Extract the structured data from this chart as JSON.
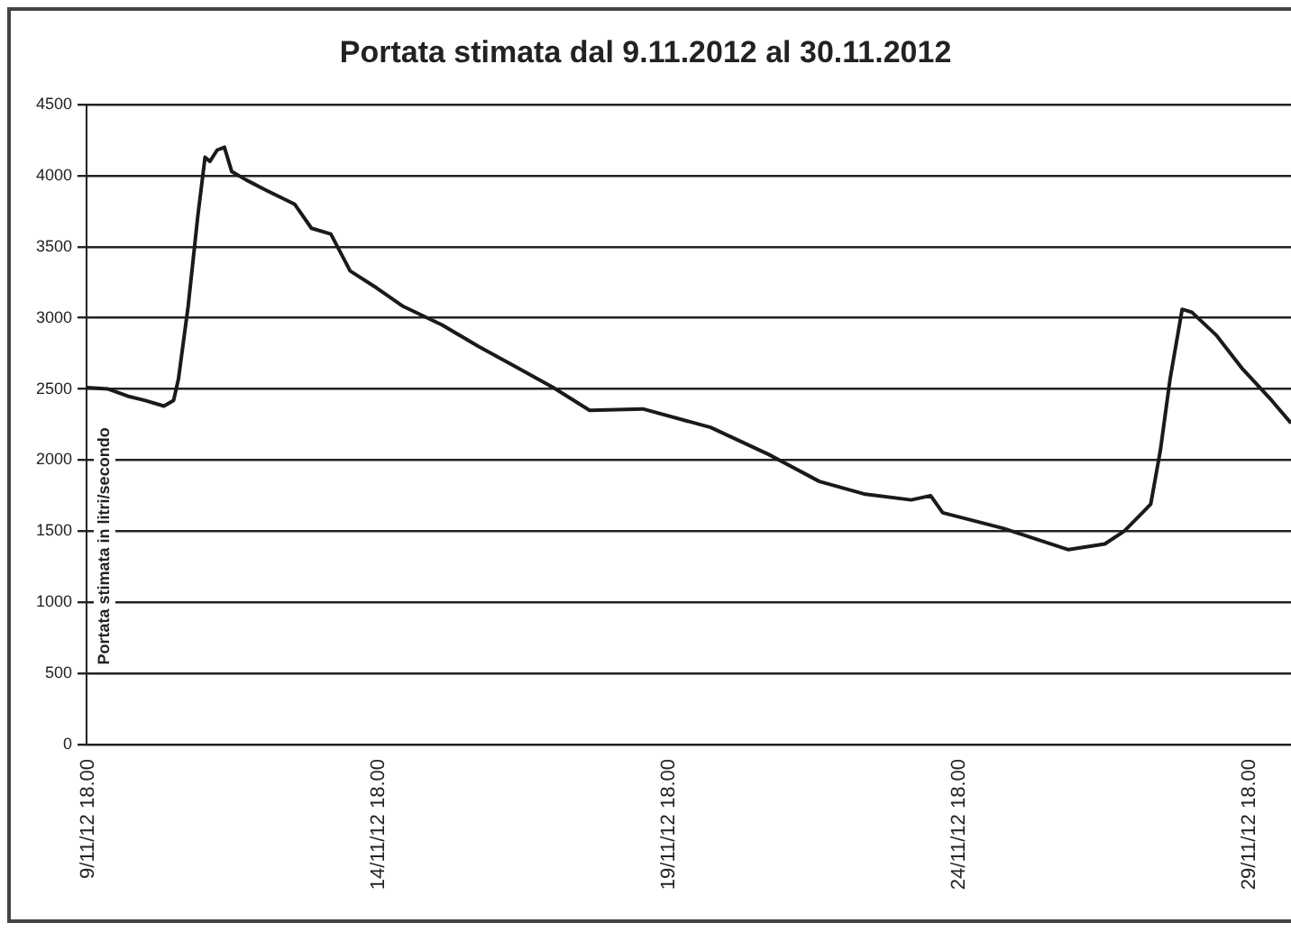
{
  "chart_data": {
    "type": "line",
    "title": "Portata stimata dal 9.11.2012 al 30.11.2012",
    "ylabel": "Portata stimata in litri/secondo",
    "x": [
      "2012-11-09T18:00",
      "2012-11-10T03:00",
      "2012-11-10T11:00",
      "2012-11-10T18:00",
      "2012-11-11T02:00",
      "2012-11-11T06:00",
      "2012-11-11T08:00",
      "2012-11-11T12:00",
      "2012-11-11T16:00",
      "2012-11-11T19:00",
      "2012-11-11T21:00",
      "2012-11-12T00:00",
      "2012-11-12T03:00",
      "2012-11-12T06:00",
      "2012-11-12T12:00",
      "2012-11-12T20:00",
      "2012-11-13T08:00",
      "2012-11-13T15:00",
      "2012-11-13T23:00",
      "2012-11-14T07:00",
      "2012-11-14T18:00",
      "2012-11-15T05:00",
      "2012-11-15T21:00",
      "2012-11-16T12:00",
      "2012-11-17T03:00",
      "2012-11-17T19:00",
      "2012-11-18T10:00",
      "2012-11-19T08:00",
      "2012-11-20T12:00",
      "2012-11-21T12:00",
      "2012-11-22T09:00",
      "2012-11-23T04:00",
      "2012-11-23T23:00",
      "2012-11-24T07:00",
      "2012-11-24T12:00",
      "2012-11-25T13:00",
      "2012-11-26T16:00",
      "2012-11-27T07:00",
      "2012-11-27T15:00",
      "2012-11-27T22:00",
      "2012-11-28T02:00",
      "2012-11-28T06:00",
      "2012-11-28T10:00",
      "2012-11-28T15:00",
      "2012-11-28T19:00",
      "2012-11-29T05:00",
      "2012-11-29T16:00",
      "2012-11-30T04:00",
      "2012-11-30T12:00"
    ],
    "series": [
      {
        "color": "#1a1a1a",
        "values": [
          2510,
          2500,
          2450,
          2420,
          2380,
          2420,
          2570,
          3080,
          3715,
          4130,
          4100,
          4180,
          4200,
          4030,
          3970,
          3900,
          3800,
          3630,
          3590,
          3330,
          3210,
          3080,
          2950,
          2800,
          2660,
          2510,
          2350,
          2360,
          2230,
          2040,
          1850,
          1760,
          1720,
          1750,
          1630,
          1520,
          1370,
          1410,
          1500,
          1620,
          1690,
          2070,
          2570,
          3060,
          3040,
          2880,
          2640,
          2420,
          2260
        ]
      }
    ],
    "xlim": [
      "2012-11-09T18:00",
      "2012-11-30T12:00"
    ],
    "xticks": [
      {
        "value": "2012-11-09T18:00",
        "label": "9/11/12 18.00"
      },
      {
        "value": "2012-11-14T18:00",
        "label": "14/11/12 18.00"
      },
      {
        "value": "2012-11-19T18:00",
        "label": "19/11/12 18.00"
      },
      {
        "value": "2012-11-24T18:00",
        "label": "24/11/12 18.00"
      },
      {
        "value": "2012-11-29T18:00",
        "label": "29/11/12 18.00"
      }
    ],
    "ylim": [
      0,
      4500
    ],
    "yticks": [
      0,
      500,
      1000,
      1500,
      2000,
      2500,
      3000,
      3500,
      4000,
      4500
    ],
    "grid": "y",
    "legend": false,
    "marker": "none",
    "line_style": "solid"
  }
}
